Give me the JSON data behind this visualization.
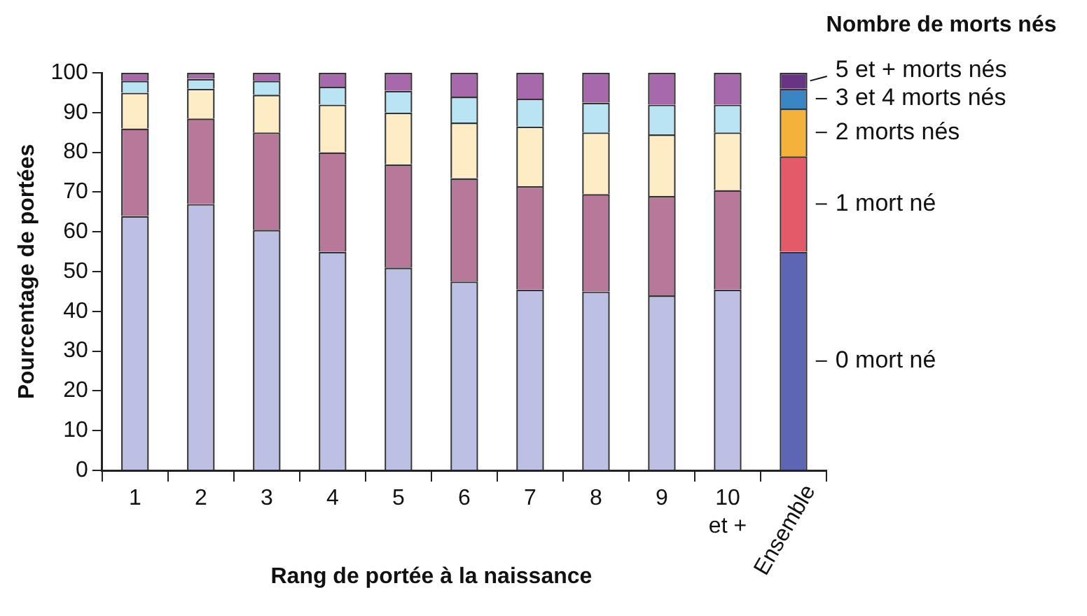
{
  "chart_data": {
    "type": "bar",
    "stacked": true,
    "xlabel": "Rang de portée à la naissance",
    "ylabel": "Pourcentage de portées",
    "legend_title": "Nombre de morts nés",
    "categories": [
      "1",
      "2",
      "3",
      "4",
      "5",
      "6",
      "7",
      "8",
      "9",
      "10\net +",
      "Ensemble"
    ],
    "ylim": [
      0,
      100
    ],
    "yticks": [
      0,
      10,
      20,
      30,
      40,
      50,
      60,
      70,
      80,
      90,
      100
    ],
    "grid": false,
    "series": [
      {
        "name": "0 mort né",
        "colors": [
          "#bcc0e4",
          "#bcc0e4",
          "#bcc0e4",
          "#bcc0e4",
          "#bcc0e4",
          "#bcc0e4",
          "#bcc0e4",
          "#bcc0e4",
          "#bcc0e4",
          "#bcc0e4",
          "#5c66b4"
        ],
        "values": [
          64,
          67,
          60.5,
          55,
          51,
          47.5,
          45.5,
          45,
          44,
          45.5,
          55
        ]
      },
      {
        "name": "1 mort né",
        "colors": [
          "#b8789a",
          "#b8789a",
          "#b8789a",
          "#b8789a",
          "#b8789a",
          "#b8789a",
          "#b8789a",
          "#b8789a",
          "#b8789a",
          "#b8789a",
          "#e45a68"
        ],
        "values": [
          22,
          21.5,
          24.5,
          25,
          26,
          26,
          26,
          24.5,
          25,
          25,
          24
        ]
      },
      {
        "name": "2 morts nés",
        "colors": [
          "#fdecc4",
          "#fdecc4",
          "#fdecc4",
          "#fdecc4",
          "#fdecc4",
          "#fdecc4",
          "#fdecc4",
          "#fdecc4",
          "#fdecc4",
          "#fdecc4",
          "#f4b23a"
        ],
        "values": [
          9,
          7.5,
          9.5,
          12,
          13,
          14,
          15,
          15.5,
          15.5,
          14.5,
          12
        ]
      },
      {
        "name": "3 et 4 morts nés",
        "colors": [
          "#b8e4f4",
          "#b8e4f4",
          "#b8e4f4",
          "#b8e4f4",
          "#b8e4f4",
          "#b8e4f4",
          "#b8e4f4",
          "#b8e4f4",
          "#b8e4f4",
          "#b8e4f4",
          "#3a86c4"
        ],
        "values": [
          3,
          2.5,
          3.5,
          4.5,
          5.5,
          6.5,
          7,
          7.5,
          7.5,
          7,
          5
        ]
      },
      {
        "name": "5 et + morts nés",
        "colors": [
          "#a868ac",
          "#a868ac",
          "#a868ac",
          "#a868ac",
          "#a868ac",
          "#a868ac",
          "#a868ac",
          "#a868ac",
          "#a868ac",
          "#a868ac",
          "#6a3484"
        ],
        "values": [
          2,
          1.5,
          2,
          3.5,
          4.5,
          6,
          6.5,
          7.5,
          8,
          8,
          4
        ]
      }
    ]
  }
}
